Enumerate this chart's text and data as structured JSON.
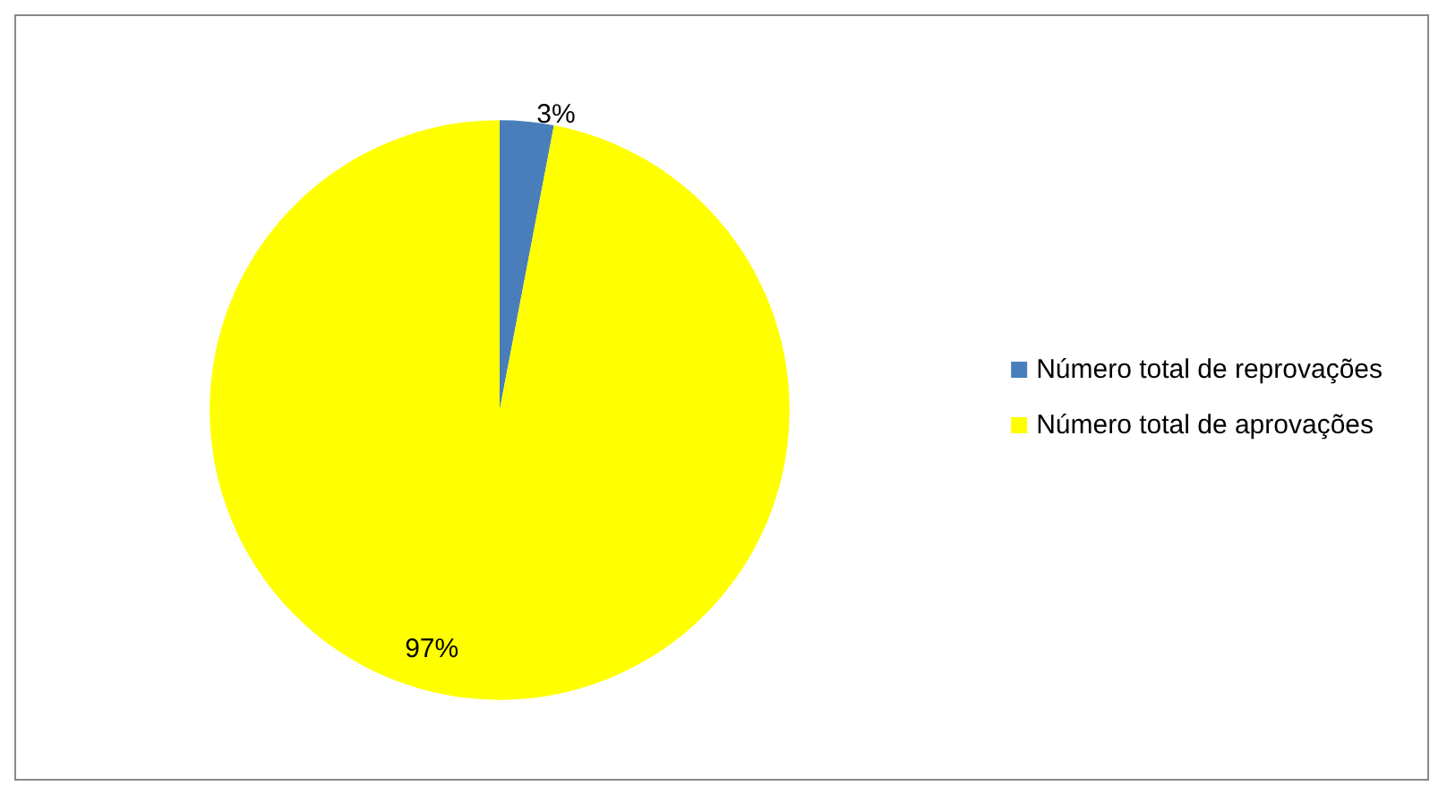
{
  "chart_data": {
    "type": "pie",
    "categories": [
      "Número total de reprovações",
      "Número total de aprovações"
    ],
    "values": [
      3,
      97
    ],
    "colors": [
      "#4a7ebb",
      "#ffff00"
    ],
    "value_labels": [
      "3%",
      "97%"
    ],
    "legend": "right"
  }
}
